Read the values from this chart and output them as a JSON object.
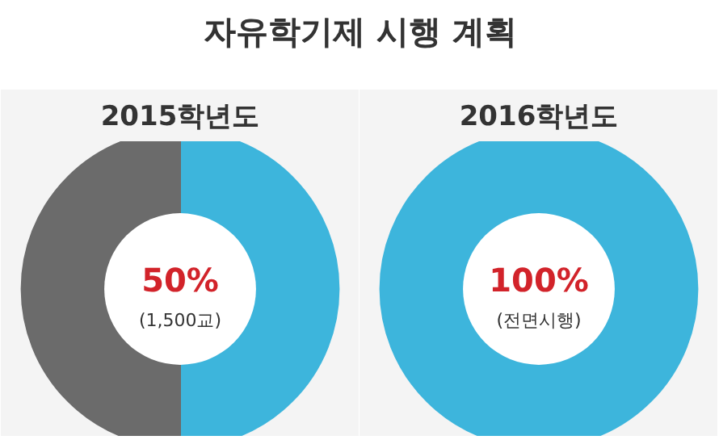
{
  "chart_data": [
    {
      "type": "other",
      "title": "자유학기제 시행 계획"
    },
    {
      "type": "donut",
      "title": "2015학년도",
      "categories": [
        null,
        null
      ],
      "values": [
        50,
        50
      ],
      "colors": [
        "#3db5dc",
        "#6b6b6b"
      ],
      "annotations": [
        "50%",
        "(1,500교)"
      ]
    },
    {
      "type": "donut",
      "title": "2016학년도",
      "categories": [
        null
      ],
      "values": [
        100
      ],
      "colors": [
        "#3db5dc"
      ],
      "annotations": [
        "100%",
        "(전면시행)"
      ]
    }
  ]
}
